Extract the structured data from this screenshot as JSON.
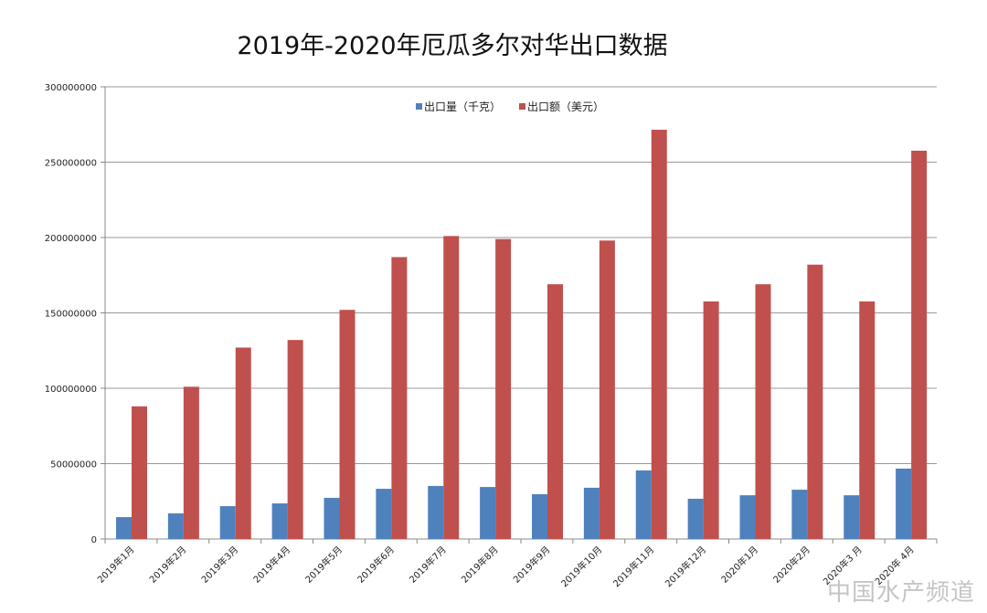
{
  "chart_data": {
    "type": "bar",
    "title": "2019年-2020年厄瓜多尔对华出口数据",
    "xlabel": "",
    "ylabel": "",
    "ylim": [
      0,
      300000000
    ],
    "yticks": [
      "0",
      "50000000",
      "100000000",
      "150000000",
      "200000000",
      "250000000",
      "300000000"
    ],
    "grid": true,
    "legend_position": "top-center",
    "categories": [
      "2019年1月",
      "2019年2月",
      "2019年3月",
      "2019年4月",
      "2019年5月",
      "2019年6月",
      "2019年7月",
      "2019年8月",
      "2019年9月",
      "2019年10月",
      "2019年11月",
      "2019年12月",
      "2020年1月",
      "2020年2月",
      "2020年3 月",
      "2020年 4月"
    ],
    "series": [
      {
        "name": "出口量（千克）",
        "color": "#4F81BD",
        "values": [
          14500000,
          17000000,
          21800000,
          23600000,
          27300000,
          33300000,
          35200000,
          34500000,
          29700000,
          34000000,
          45500000,
          26700000,
          29000000,
          32700000,
          29000000,
          46700000
        ]
      },
      {
        "name": "出口额（美元）",
        "color": "#C0504D",
        "values": [
          88000000,
          101000000,
          127000000,
          132000000,
          152000000,
          187000000,
          201000000,
          199000000,
          169000000,
          198000000,
          271500000,
          157600000,
          169000000,
          182000000,
          157600000,
          257600000
        ]
      }
    ]
  },
  "watermark": {
    "text": "中国水产频道"
  }
}
